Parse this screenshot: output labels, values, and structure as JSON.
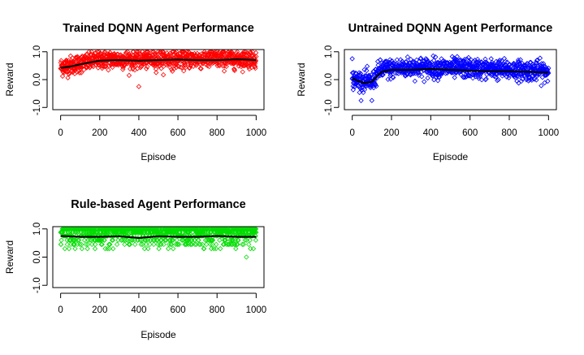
{
  "chart_data": [
    {
      "type": "scatter",
      "title": "Trained DQNN Agent Performance",
      "xlabel": "Episode",
      "ylabel": "Reward",
      "xlim": [
        0,
        1000
      ],
      "ylim": [
        -1.0,
        1.0
      ],
      "x_ticks": [
        0,
        200,
        400,
        600,
        800,
        1000
      ],
      "y_ticks": [
        -1.0,
        0.0,
        1.0
      ],
      "x_tick_labels": [
        "0",
        "200",
        "400",
        "600",
        "800",
        "1000"
      ],
      "y_tick_labels": [
        "-1.0",
        "0.0",
        "1.0"
      ],
      "point_color": "#ff0000",
      "trend_color": "#000000",
      "n_points": 1000,
      "point_mean_segments": [
        [
          0,
          0.45
        ],
        [
          80,
          0.55
        ],
        [
          200,
          0.72
        ],
        [
          1000,
          0.75
        ]
      ],
      "point_spread": 0.3,
      "trend": [
        [
          0,
          0.42
        ],
        [
          50,
          0.47
        ],
        [
          100,
          0.55
        ],
        [
          150,
          0.62
        ],
        [
          200,
          0.68
        ],
        [
          300,
          0.7
        ],
        [
          400,
          0.68
        ],
        [
          500,
          0.7
        ],
        [
          600,
          0.72
        ],
        [
          700,
          0.7
        ],
        [
          800,
          0.7
        ],
        [
          900,
          0.73
        ],
        [
          950,
          0.72
        ],
        [
          1000,
          0.7
        ]
      ],
      "outliers": [
        [
          400,
          -0.25
        ]
      ],
      "grid": false
    },
    {
      "type": "scatter",
      "title": "Untrained DQNN Agent Performance",
      "xlabel": "Episode",
      "ylabel": "Reward",
      "xlim": [
        0,
        1000
      ],
      "ylim": [
        -1.0,
        1.0
      ],
      "x_ticks": [
        0,
        200,
        400,
        600,
        800,
        1000
      ],
      "y_ticks": [
        -1.0,
        0.0,
        1.0
      ],
      "x_tick_labels": [
        "0",
        "200",
        "400",
        "600",
        "800",
        "1000"
      ],
      "y_tick_labels": [
        "-1.0",
        "0.0",
        "1.0"
      ],
      "point_color": "#0000ff",
      "trend_color": "#000000",
      "n_points": 1000,
      "point_mean_segments": [
        [
          0,
          0.0
        ],
        [
          100,
          -0.1
        ],
        [
          140,
          0.35
        ],
        [
          300,
          0.45
        ],
        [
          600,
          0.4
        ],
        [
          1000,
          0.3
        ]
      ],
      "point_spread": 0.32,
      "trend": [
        [
          0,
          0.05
        ],
        [
          30,
          -0.05
        ],
        [
          60,
          -0.12
        ],
        [
          100,
          -0.08
        ],
        [
          130,
          0.15
        ],
        [
          150,
          0.28
        ],
        [
          200,
          0.35
        ],
        [
          300,
          0.35
        ],
        [
          400,
          0.38
        ],
        [
          500,
          0.35
        ],
        [
          600,
          0.32
        ],
        [
          700,
          0.3
        ],
        [
          800,
          0.3
        ],
        [
          900,
          0.28
        ],
        [
          1000,
          0.25
        ]
      ],
      "outliers": [
        [
          0,
          0.75
        ],
        [
          100,
          -0.75
        ]
      ],
      "grid": false
    },
    {
      "type": "scatter",
      "title": "Rule-based Agent Performance",
      "xlabel": "Episode",
      "ylabel": "Reward",
      "xlim": [
        0,
        1000
      ],
      "ylim": [
        -1.0,
        1.0
      ],
      "x_ticks": [
        0,
        200,
        400,
        600,
        800,
        1000
      ],
      "y_ticks": [
        -1.0,
        0.0,
        1.0
      ],
      "x_tick_labels": [
        "0",
        "200",
        "400",
        "600",
        "800",
        "1000"
      ],
      "y_tick_labels": [
        "-1.0",
        "0.0",
        "1.0"
      ],
      "point_color": "#00dd00",
      "trend_color": "#000000",
      "n_points": 1000,
      "discrete_levels": [
        1.0,
        0.88,
        0.75,
        0.6,
        0.45,
        0.3
      ],
      "level_weights": [
        0.42,
        0.22,
        0.16,
        0.1,
        0.07,
        0.03
      ],
      "trend": [
        [
          0,
          0.75
        ],
        [
          100,
          0.72
        ],
        [
          200,
          0.72
        ],
        [
          300,
          0.74
        ],
        [
          400,
          0.68
        ],
        [
          500,
          0.74
        ],
        [
          600,
          0.72
        ],
        [
          700,
          0.72
        ],
        [
          800,
          0.75
        ],
        [
          900,
          0.72
        ],
        [
          1000,
          0.72
        ]
      ],
      "outliers": [
        [
          950,
          0.0
        ]
      ],
      "grid": false
    }
  ]
}
